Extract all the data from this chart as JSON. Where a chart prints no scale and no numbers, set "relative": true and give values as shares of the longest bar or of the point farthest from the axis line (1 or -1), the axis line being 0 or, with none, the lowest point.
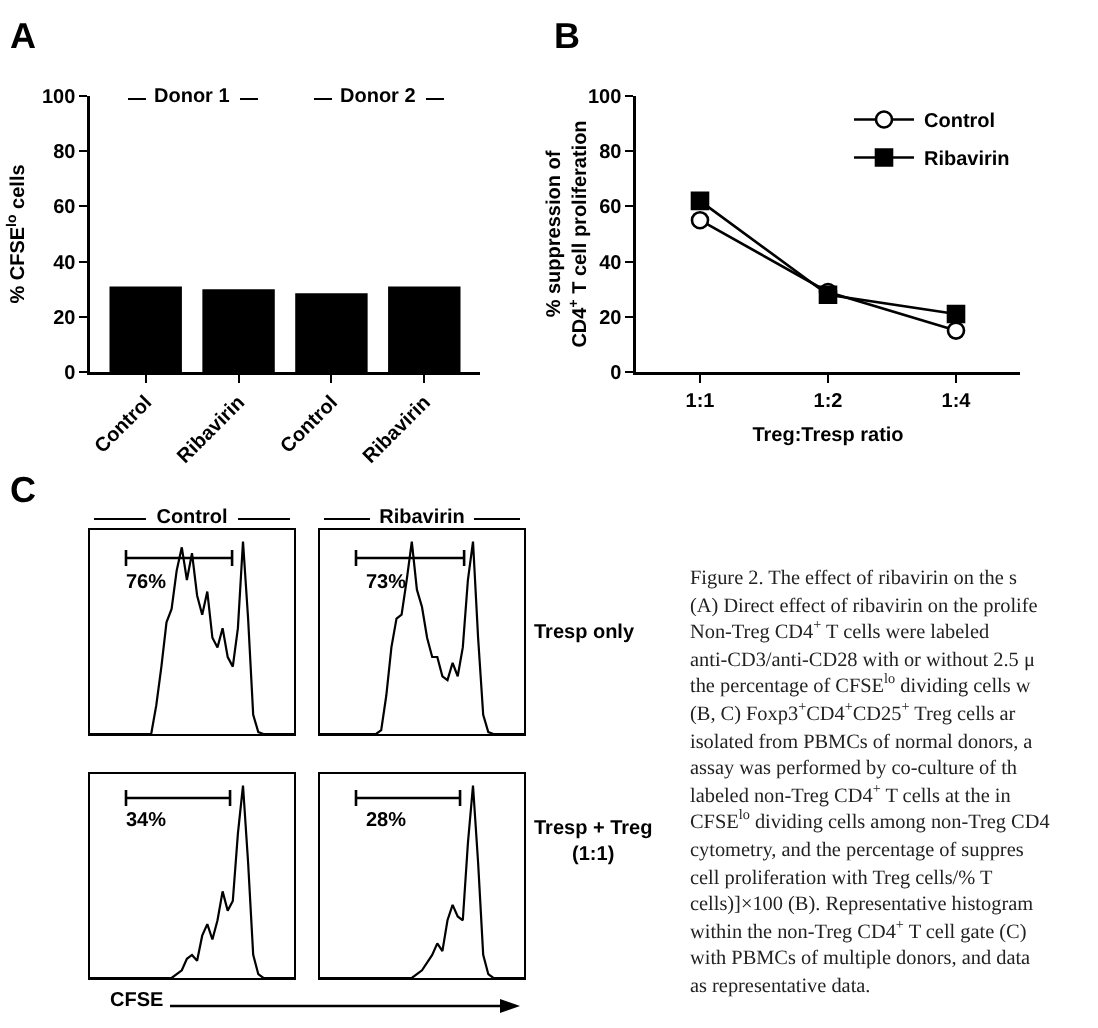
{
  "chart_data": [
    {
      "type": "bar",
      "ylabel": "% CFSE$^{lo}$ cells",
      "categories": [
        "Control",
        "Ribavirin",
        "Control",
        "Ribavirin"
      ],
      "values": [
        31,
        30,
        28.5,
        31
      ],
      "color": "#000000",
      "ylim": [
        0,
        100
      ],
      "yticks": [
        0,
        20,
        40,
        60,
        80,
        100
      ],
      "grid": false,
      "annotations": [
        "A",
        "Donor 1",
        "Donor 2"
      ]
    },
    {
      "type": "line",
      "xlabel": "Treg:Tresp ratio",
      "ylabel": "% suppression of\nCD4$^{+}$ T cell proliferation",
      "categories": [
        "1:1",
        "1:2",
        "1:4"
      ],
      "series": [
        {
          "name": "Control",
          "color": "#000000",
          "marker": "circle",
          "values": [
            55,
            29,
            15
          ]
        },
        {
          "name": "Ribavirin",
          "color": "#000000",
          "marker": "square",
          "values": [
            62,
            28,
            21
          ]
        }
      ],
      "ylim": [
        0,
        100
      ],
      "yticks": [
        0,
        20,
        40,
        60,
        80,
        100
      ],
      "grid": false,
      "legend": "top right",
      "annotations": [
        "B"
      ]
    },
    {
      "type": "line",
      "relative": true,
      "title": "Control",
      "categories": [
        null,
        null,
        null,
        null,
        null,
        null,
        null,
        null,
        null,
        null,
        null,
        null,
        null,
        null,
        null,
        null,
        null,
        null,
        null,
        null,
        null,
        null,
        null,
        null,
        null,
        null,
        null,
        null,
        null,
        null,
        null,
        null,
        null,
        null,
        null,
        null,
        null,
        null,
        null,
        null,
        null
      ],
      "series": [
        {
          "color": "#000000",
          "values": [
            0,
            0,
            0,
            0,
            0,
            0,
            0,
            0,
            0,
            0,
            0,
            0,
            0,
            0.15,
            0.35,
            0.58,
            0.65,
            0.85,
            0.97,
            0.8,
            0.94,
            0.72,
            0.62,
            0.74,
            0.5,
            0.45,
            0.55,
            0.4,
            0.35,
            0.55,
            1,
            0.6,
            0.1,
            0.01,
            0,
            0,
            0,
            0,
            0,
            0,
            0
          ]
        }
      ],
      "annotations": [
        "C",
        "76%"
      ]
    },
    {
      "type": "line",
      "relative": true,
      "title": "Ribavirin",
      "categories": [
        null,
        null,
        null,
        null,
        null,
        null,
        null,
        null,
        null,
        null,
        null,
        null,
        null,
        null,
        null,
        null,
        null,
        null,
        null,
        null,
        null,
        null,
        null,
        null,
        null,
        null,
        null,
        null,
        null,
        null,
        null,
        null,
        null,
        null,
        null,
        null,
        null,
        null,
        null,
        null,
        null
      ],
      "series": [
        {
          "color": "#000000",
          "values": [
            0,
            0,
            0,
            0,
            0,
            0,
            0,
            0,
            0,
            0,
            0,
            0,
            0.02,
            0.2,
            0.45,
            0.6,
            0.62,
            0.8,
            1,
            0.75,
            0.66,
            0.5,
            0.4,
            0.4,
            0.3,
            0.28,
            0.37,
            0.3,
            0.45,
            0.8,
            1,
            0.5,
            0.1,
            0.01,
            0,
            0,
            0,
            0,
            0,
            0,
            0
          ]
        }
      ],
      "annotations": [
        "73%",
        "Tresp only"
      ]
    },
    {
      "type": "line",
      "relative": true,
      "xlabel": "CFSE",
      "categories": [
        null,
        null,
        null,
        null,
        null,
        null,
        null,
        null,
        null,
        null,
        null,
        null,
        null,
        null,
        null,
        null,
        null,
        null,
        null,
        null,
        null,
        null,
        null,
        null,
        null,
        null,
        null,
        null,
        null,
        null,
        null,
        null,
        null,
        null,
        null,
        null,
        null,
        null,
        null,
        null,
        null
      ],
      "series": [
        {
          "color": "#000000",
          "values": [
            0,
            0,
            0,
            0,
            0,
            0,
            0,
            0,
            0,
            0,
            0,
            0,
            0,
            0,
            0,
            0,
            0,
            0.02,
            0.04,
            0.1,
            0.12,
            0.09,
            0.22,
            0.28,
            0.2,
            0.3,
            0.45,
            0.35,
            0.4,
            0.75,
            1,
            0.6,
            0.12,
            0.02,
            0,
            0,
            0,
            0,
            0,
            0,
            0
          ]
        }
      ],
      "annotations": [
        "34%"
      ]
    },
    {
      "type": "line",
      "relative": true,
      "categories": [
        null,
        null,
        null,
        null,
        null,
        null,
        null,
        null,
        null,
        null,
        null,
        null,
        null,
        null,
        null,
        null,
        null,
        null,
        null,
        null,
        null,
        null,
        null,
        null,
        null,
        null,
        null,
        null,
        null,
        null,
        null,
        null,
        null,
        null,
        null,
        null,
        null,
        null,
        null,
        null,
        null
      ],
      "series": [
        {
          "color": "#000000",
          "values": [
            0,
            0,
            0,
            0,
            0,
            0,
            0,
            0,
            0,
            0,
            0,
            0,
            0,
            0,
            0,
            0,
            0,
            0,
            0,
            0.02,
            0.04,
            0.08,
            0.12,
            0.18,
            0.14,
            0.3,
            0.38,
            0.32,
            0.3,
            0.7,
            1,
            0.6,
            0.12,
            0.02,
            0,
            0,
            0,
            0,
            0,
            0,
            0
          ]
        }
      ],
      "annotations": [
        "28%",
        "Tresp + Treg\n(1:1)"
      ]
    },
    {
      "type": "other",
      "annotations": [
        "Figure 2. The effect of ribavirin on the s",
        "(A) Direct effect of ribavirin on the prolife",
        "Non-Treg CD4$^{+}$ T cells were labeled",
        "anti-CD3/anti-CD28 with or without 2.5 μ",
        "the percentage of CFSE$^{lo}$ dividing cells w",
        "(B, C) Foxp3$^{+}$CD4$^{+}$CD25$^{+}$ Treg cells ar",
        "isolated from PBMCs of normal donors, a",
        "assay was performed by co-culture of th",
        "labeled non-Treg CD4$^{+}$ T cells at the in",
        "CFSE$^{lo}$ dividing cells among non-Treg CD4",
        "cytometry, and the percentage of suppres",
        "cell proliferation with Treg cells/% T",
        "cells)]×100 (B). Representative histogram",
        "within the non-Treg CD4$^{+}$ T cell gate (C)",
        "with PBMCs of multiple donors, and data",
        "as representative data."
      ]
    }
  ]
}
